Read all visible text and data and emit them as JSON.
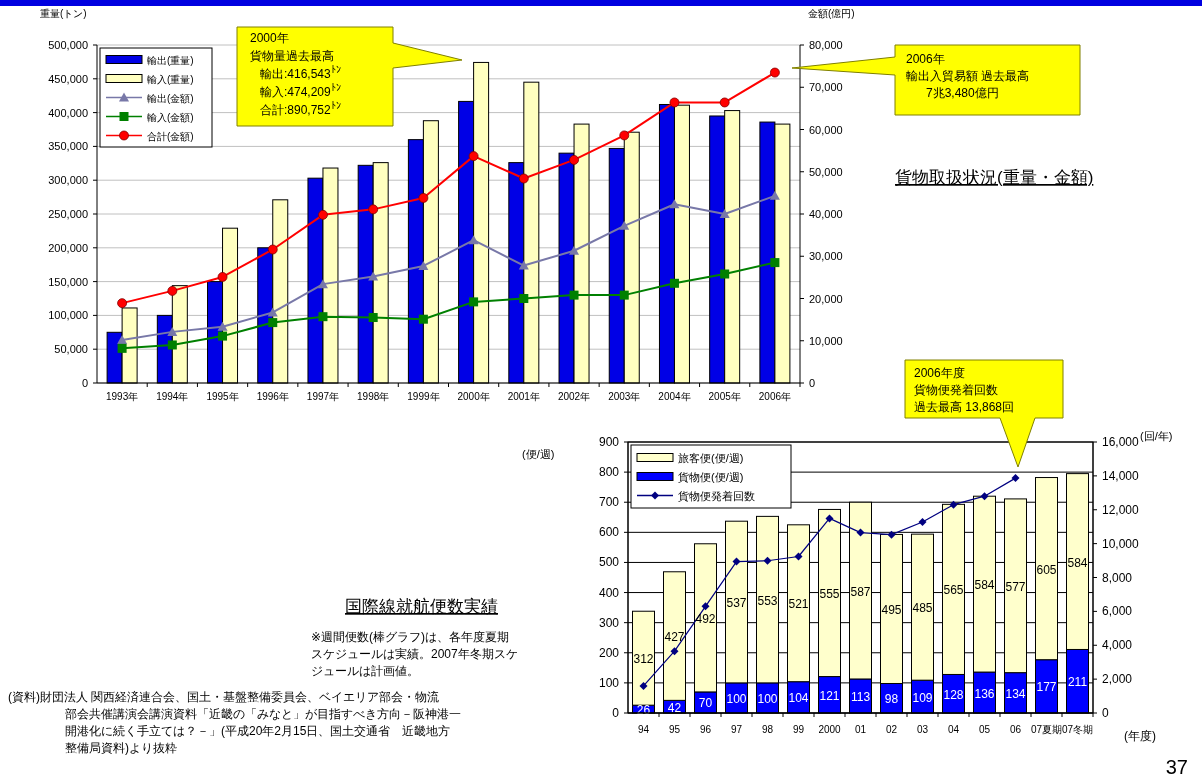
{
  "chart_data": [
    {
      "type": "bar",
      "ylabel": "重量(トン)",
      "y2label": "金額(億円)",
      "categories": [
        "1993年",
        "1994年",
        "1995年",
        "1996年",
        "1997年",
        "1998年",
        "1999年",
        "2000年",
        "2001年",
        "2002年",
        "2003年",
        "2004年",
        "2005年",
        "2006年"
      ],
      "series": [
        {
          "name": "輸出(重量)",
          "color": "#0000e6",
          "values": [
            75000,
            100000,
            150000,
            200000,
            303000,
            322000,
            360000,
            416543,
            326000,
            340000,
            347000,
            412000,
            395000,
            386000
          ]
        },
        {
          "name": "輸入(重量)",
          "color": "#ffffc0",
          "values": [
            111000,
            144000,
            229000,
            271000,
            318000,
            326000,
            388000,
            474209,
            445000,
            383000,
            371000,
            411000,
            403000,
            383000
          ]
        },
        {
          "name": "輸出(金額)",
          "type": "line",
          "axis": "y2",
          "marker": "triangle",
          "color": "#7878a8",
          "values": [
            10200,
            12100,
            13300,
            16700,
            23400,
            25200,
            27700,
            33800,
            27800,
            31300,
            37200,
            42300,
            40000,
            44300
          ]
        },
        {
          "name": "輸入(金額)",
          "type": "line",
          "axis": "y2",
          "marker": "square",
          "color": "#008000",
          "values": [
            8200,
            9000,
            11100,
            14300,
            15700,
            15500,
            15100,
            19200,
            20000,
            20800,
            20800,
            23600,
            25800,
            28500
          ]
        },
        {
          "name": "合計(金額)",
          "type": "line",
          "axis": "y2",
          "marker": "circle",
          "color": "#ff0000",
          "values": [
            18900,
            21800,
            25100,
            31600,
            39800,
            41100,
            43800,
            53700,
            48400,
            52800,
            58600,
            66400,
            66400,
            73480
          ]
        }
      ],
      "ylim": [
        0,
        500000
      ],
      "yticks": [
        0,
        {
          "value": 50000,
          "label": "50,000"
        },
        {
          "value": 100000,
          "label": "100,000"
        },
        {
          "value": 150000,
          "label": "150,000"
        },
        {
          "value": 200000,
          "label": "200,000"
        },
        {
          "value": 250000,
          "label": "250,000"
        },
        {
          "value": 300000,
          "label": "300,000"
        },
        {
          "value": 350000,
          "label": "350,000"
        },
        {
          "value": 400000,
          "label": "400,000"
        },
        {
          "value": 450000,
          "label": "450,000"
        },
        {
          "value": 500000,
          "label": "500,000"
        }
      ],
      "y2lim": [
        0,
        80000
      ],
      "y2ticks": [
        0,
        {
          "value": 10000,
          "label": "10,000"
        },
        {
          "value": 20000,
          "label": "20,000"
        },
        {
          "value": 30000,
          "label": "30,000"
        },
        {
          "value": 40000,
          "label": "40,000"
        },
        {
          "value": 50000,
          "label": "50,000"
        },
        {
          "value": 60000,
          "label": "60,000"
        },
        {
          "value": 70000,
          "label": "70,000"
        },
        {
          "value": 80000,
          "label": "80,000"
        }
      ],
      "grid": "y",
      "legend": "top left",
      "annotations": [
        "2000年貨物量過去最高輸出:416,543$^{ﾄﾝ}$輸入:474,209$^{ﾄﾝ}$合計:890,752$^{ﾄﾝ}$",
        "2006年輸出入貿易額 過去最高7兆3,480億円",
        "貨物取扱状況(重量・金額)"
      ]
    },
    {
      "type": "bar",
      "stacked": true,
      "ylabel": "(便/週)",
      "y2label": "(回/年)",
      "xlabel": "(年度)",
      "categories": [
        "94",
        "95",
        "96",
        "97",
        "98",
        "99",
        "2000",
        "01",
        "02",
        "03",
        "04",
        "05",
        "06",
        "07夏期",
        "07冬期"
      ],
      "series": [
        {
          "name": "貨物便(便/週)",
          "color": "#0000ff",
          "values": [
            26,
            42,
            70,
            100,
            100,
            104,
            121,
            113,
            98,
            109,
            128,
            136,
            134,
            177,
            211
          ],
          "value_labels": [
            "26",
            "42",
            "70",
            "100",
            "100",
            "104",
            "121",
            "113",
            "98",
            "109",
            "128",
            "136",
            "134",
            "177",
            "211"
          ]
        },
        {
          "name": "旅客便(便/週)",
          "color": "#ffffcc",
          "values": [
            312,
            427,
            492,
            537,
            553,
            521,
            555,
            587,
            495,
            485,
            565,
            584,
            577,
            605,
            584
          ],
          "value_labels": [
            "312",
            "427",
            "492",
            "537",
            "553",
            "521",
            "555",
            "587",
            "495",
            "485",
            "565",
            "584",
            "577",
            "605",
            "584"
          ]
        },
        {
          "name": "貨物便発着回数",
          "type": "line",
          "axis": "y2",
          "marker": "diamond",
          "color": "#000080",
          "values": [
            1600,
            3650,
            6300,
            8940,
            8990,
            9240,
            11490,
            10650,
            10530,
            11280,
            12300,
            12800,
            13868,
            null,
            null
          ]
        }
      ],
      "ylim": [
        0,
        900
      ],
      "yticks": [
        0,
        100,
        200,
        300,
        400,
        500,
        600,
        700,
        800,
        900
      ],
      "y2lim": [
        0,
        16000
      ],
      "y2ticks": [
        0,
        {
          "value": 2000,
          "label": "2,000"
        },
        {
          "value": 4000,
          "label": "4,000"
        },
        {
          "value": 6000,
          "label": "6,000"
        },
        {
          "value": 8000,
          "label": "8,000"
        },
        {
          "value": 10000,
          "label": "10,000"
        },
        {
          "value": 12000,
          "label": "12,000"
        },
        {
          "value": 14000,
          "label": "14,000"
        },
        {
          "value": 16000,
          "label": "16,000"
        }
      ],
      "grid": "y",
      "legend": "top left",
      "annotations": [
        "2006年度貨物便発着回数過去最高  13,868回",
        "※週間便数(棒グラフ)は、各年度夏期スケジュールは実績。2007年冬期スケジュールは計画値。",
        "(資料)財団法人 関西経済連合会、国土・基盤整備委員会、ベイエリア部会・物流部会共催講演会講演資料「近畿の「みなと」が目指すべき方向－阪神港一開港化に続く手立ては？－」(平成20年2月15日、国土交通省　近畿地方整備局資料)より抜粋",
        "37",
        "国際線就航便数実績"
      ]
    }
  ]
}
